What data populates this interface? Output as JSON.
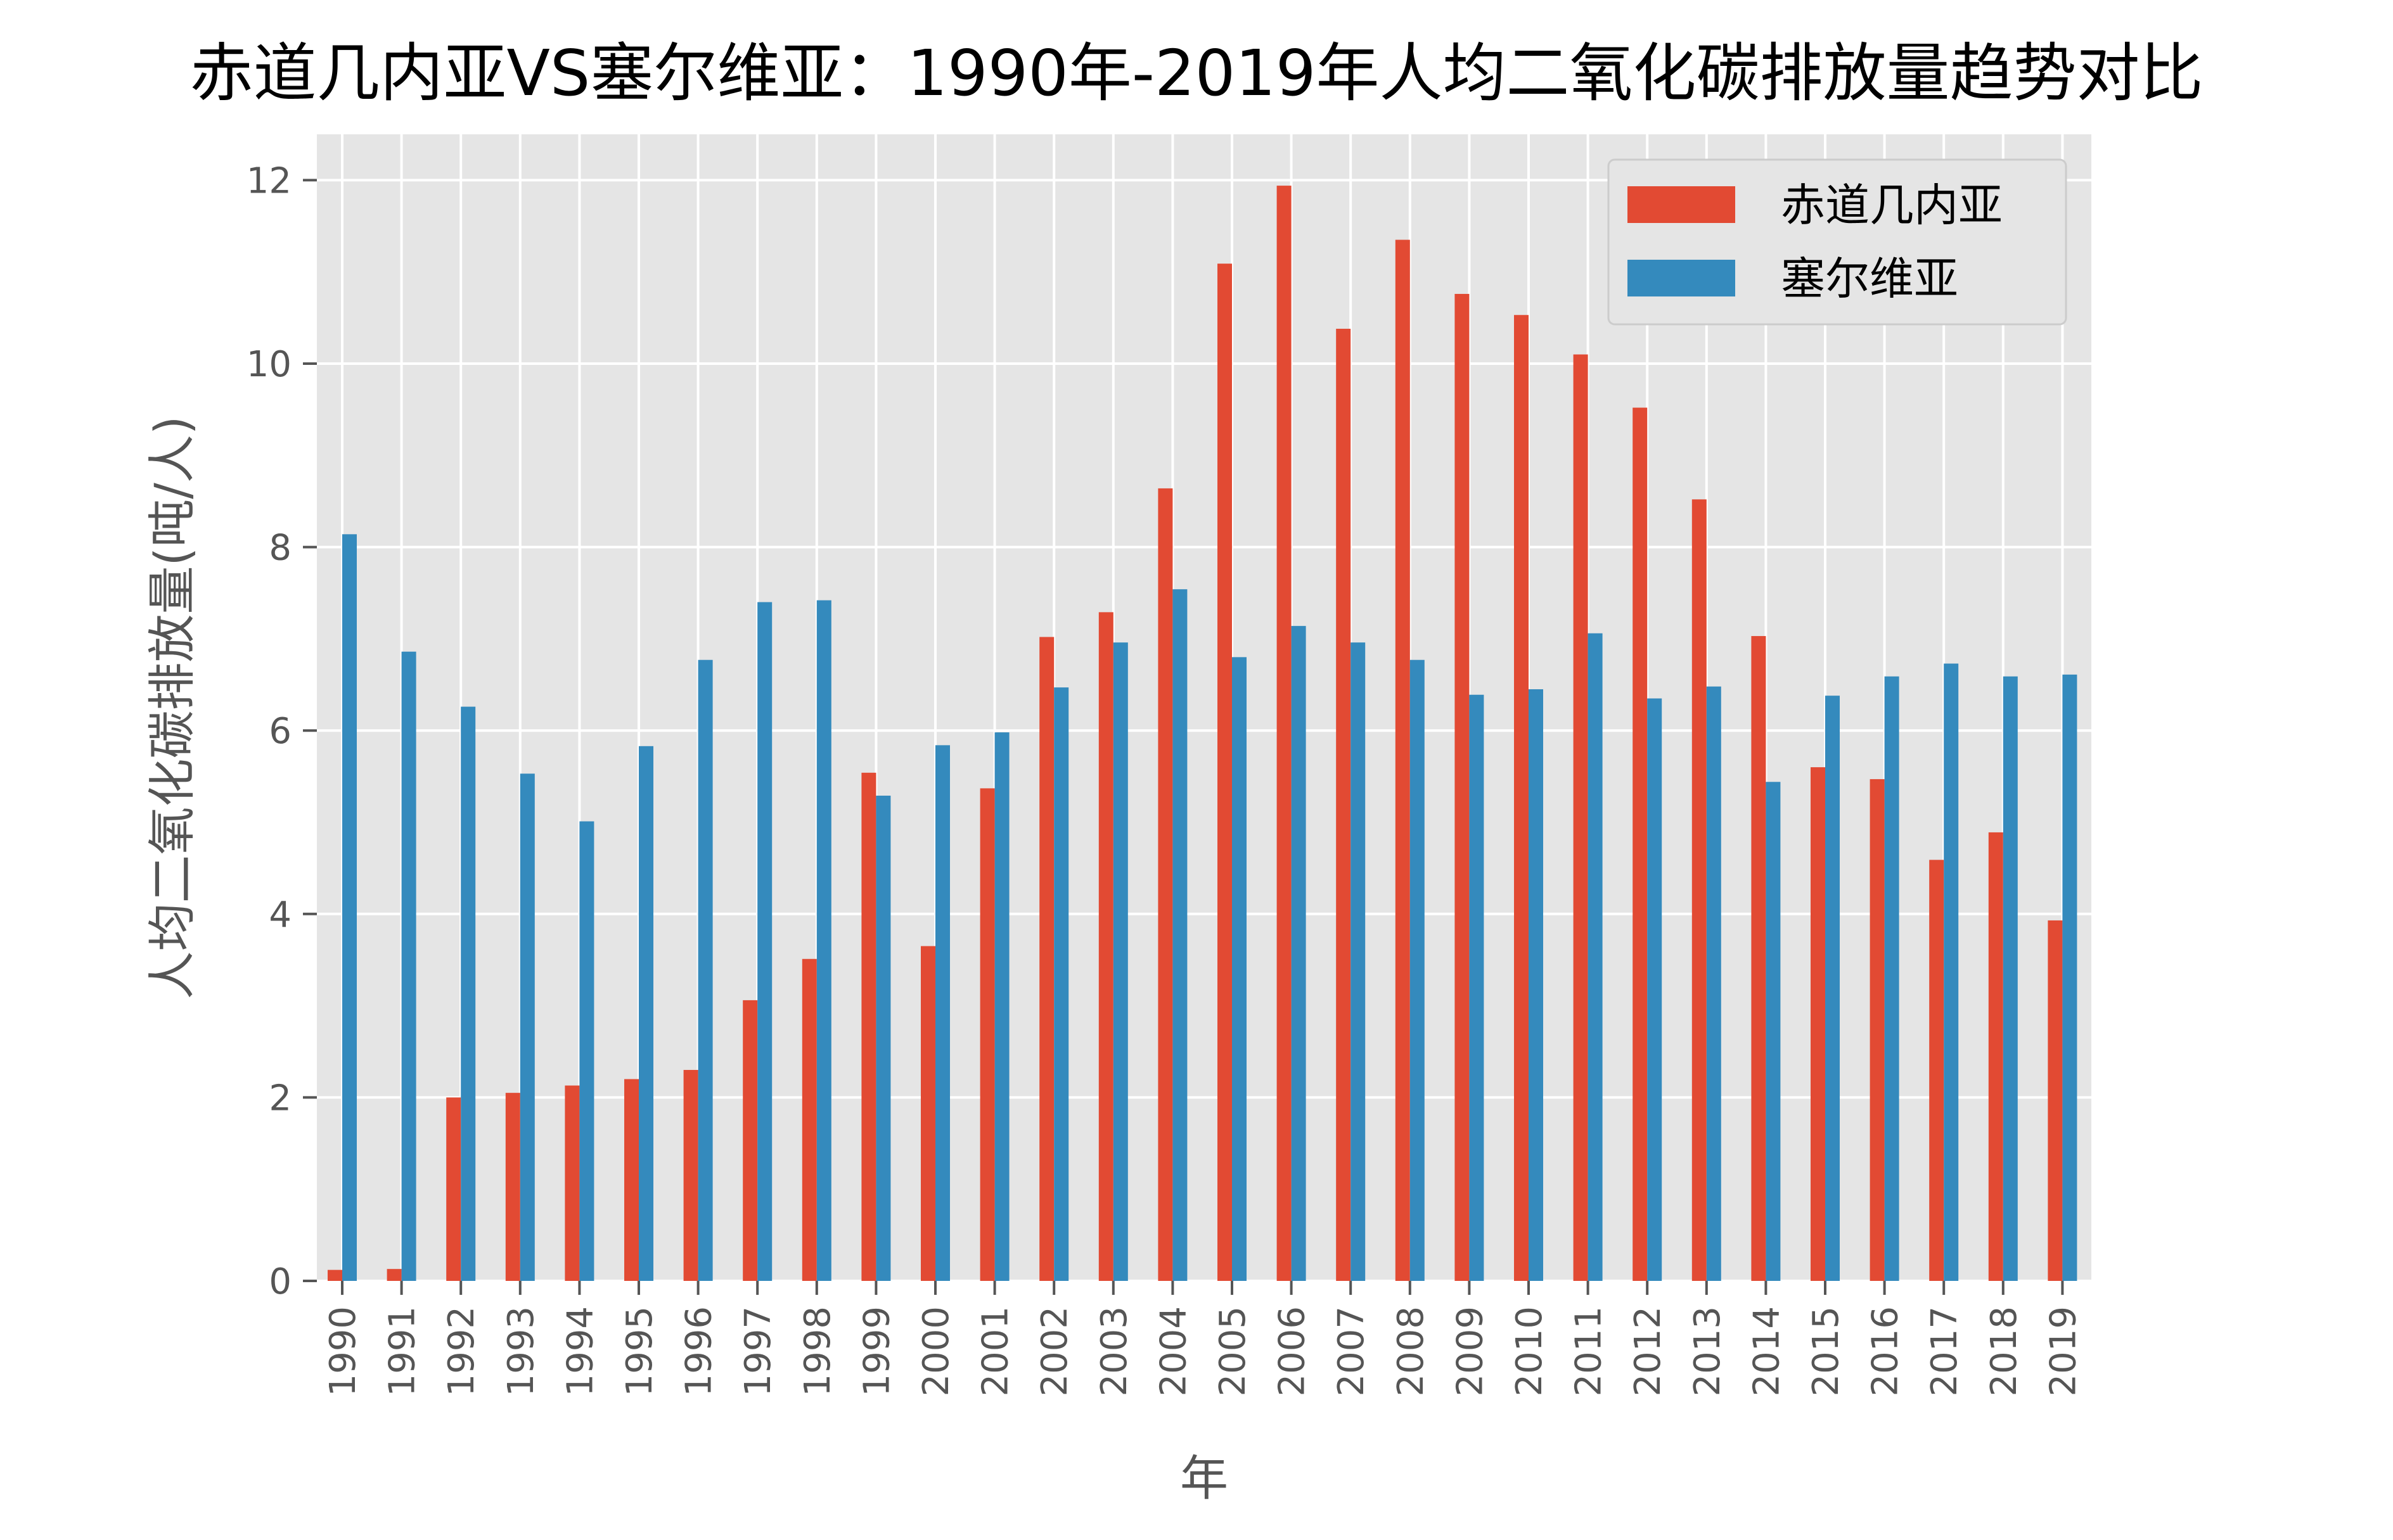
{
  "chart_data": {
    "type": "bar",
    "title": "赤道几内亚VS塞尔维亚：1990年-2019年人均二氧化碳排放量趋势对比",
    "xlabel": "年",
    "ylabel": "人均二氧化碳排放量(吨/人)",
    "categories": [
      "1990",
      "1991",
      "1992",
      "1993",
      "1994",
      "1995",
      "1996",
      "1997",
      "1998",
      "1999",
      "2000",
      "2001",
      "2002",
      "2003",
      "2004",
      "2005",
      "2006",
      "2007",
      "2008",
      "2009",
      "2010",
      "2011",
      "2012",
      "2013",
      "2014",
      "2015",
      "2016",
      "2017",
      "2018",
      "2019"
    ],
    "series": [
      {
        "name": "赤道几内亚",
        "color": "#E24A33",
        "values": [
          0.12,
          0.13,
          2.0,
          2.05,
          2.13,
          2.2,
          2.3,
          3.06,
          3.51,
          5.54,
          3.65,
          5.37,
          7.02,
          7.29,
          8.64,
          11.09,
          11.94,
          10.38,
          11.35,
          10.76,
          10.53,
          10.1,
          9.52,
          8.52,
          7.03,
          5.6,
          5.47,
          4.59,
          4.89,
          3.93
        ]
      },
      {
        "name": "塞尔维亚",
        "color": "#348ABD",
        "values": [
          8.14,
          6.86,
          6.26,
          5.53,
          5.01,
          5.83,
          6.77,
          7.4,
          7.42,
          5.29,
          5.84,
          5.98,
          6.47,
          6.96,
          7.54,
          6.8,
          7.14,
          6.96,
          6.77,
          6.39,
          6.45,
          7.06,
          6.35,
          6.48,
          5.44,
          6.38,
          6.59,
          6.73,
          6.59,
          6.61
        ]
      }
    ],
    "ylim": [
      0,
      12.5
    ],
    "yticks": [
      0,
      2,
      4,
      6,
      8,
      10,
      12
    ],
    "grid": true,
    "legend_position": "top-right",
    "background_color": "#E5E5E5"
  }
}
